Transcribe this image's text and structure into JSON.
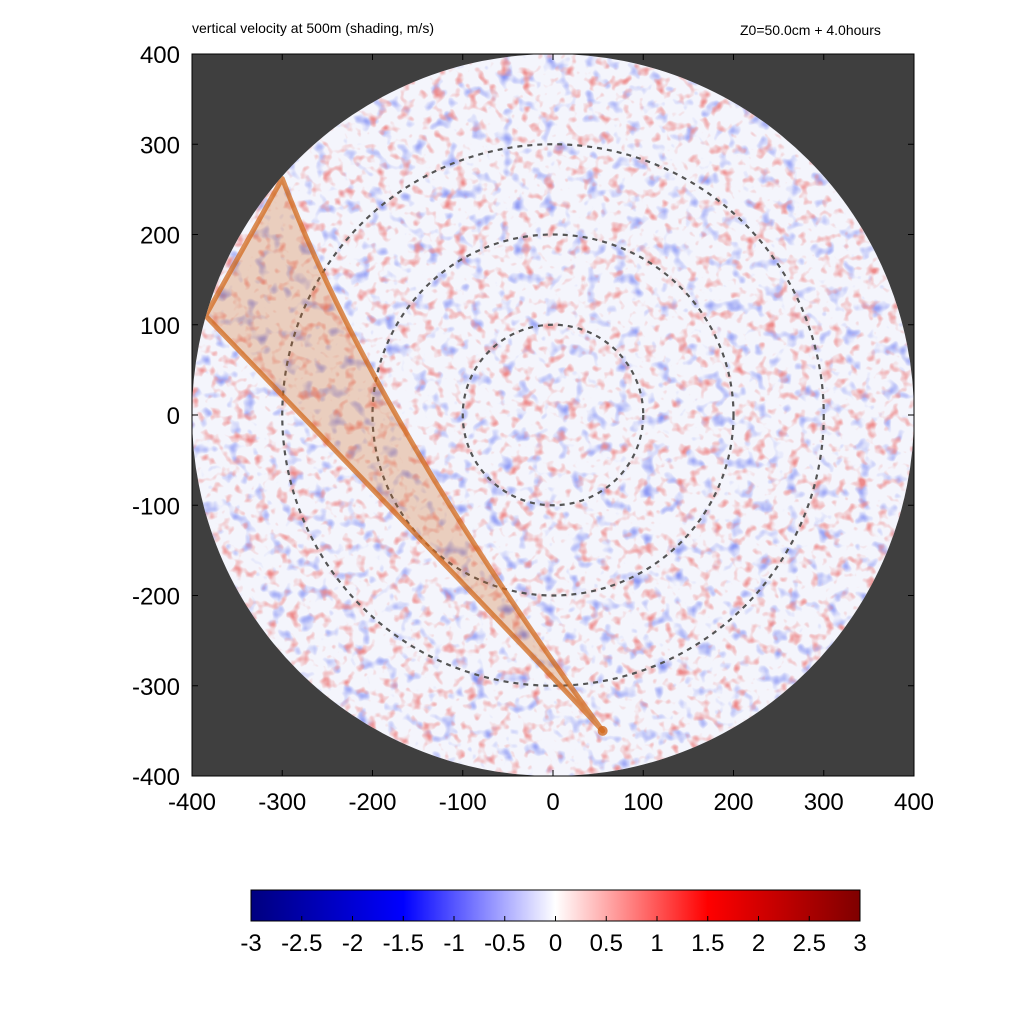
{
  "chart_data": {
    "type": "heatmap",
    "title": "vertical velocity at 500m (shading, m/s)",
    "subtitle": "Z0=50.0cm  + 4.0hours",
    "xlabel": "",
    "ylabel": "",
    "xlim": [
      -400,
      400
    ],
    "ylim": [
      -400,
      400
    ],
    "xticks": [
      -400,
      -300,
      -200,
      -100,
      0,
      100,
      200,
      300,
      400
    ],
    "yticks": [
      -400,
      -300,
      -200,
      -100,
      0,
      100,
      200,
      300,
      400
    ],
    "domain_radius": 400,
    "range_rings": [
      100,
      200,
      300
    ],
    "colorbar": {
      "min": -3,
      "max": 3,
      "ticks": [
        "-3",
        "-2.5",
        "-2",
        "-1.5",
        "-1",
        "-0.5",
        "0",
        "0.5",
        "1",
        "1.5",
        "2",
        "2.5",
        "3"
      ],
      "colors": [
        "#00007f",
        "#0000ff",
        "#ffffff",
        "#ff0000",
        "#7f0000"
      ]
    },
    "sector": {
      "apex": [
        55,
        -350
      ],
      "edge_left_end": [
        -385,
        110
      ],
      "edge_right_end": [
        -300,
        262
      ],
      "edge_left_mid": [
        10,
        -300
      ],
      "edge_right_mid": [
        -200,
        0
      ],
      "color": "#d2691e"
    },
    "outside_color": "#3f3f3f"
  }
}
